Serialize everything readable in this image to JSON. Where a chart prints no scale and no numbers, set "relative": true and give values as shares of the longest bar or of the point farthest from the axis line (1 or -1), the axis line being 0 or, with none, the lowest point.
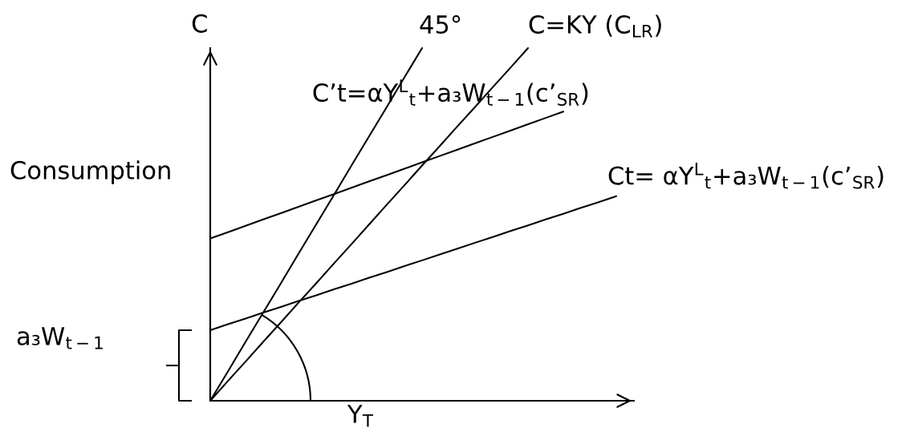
{
  "chart_data": {
    "type": "line",
    "relative": true,
    "line_style": "solid",
    "xlabel": "Y$_{T}$",
    "ylabel": "C",
    "annotations": [
      "Consumption",
      "a₃W$_{t−1}$"
    ],
    "categories": [
      null,
      null,
      null,
      null,
      null,
      null,
      null,
      null,
      null,
      null,
      null,
      null,
      null,
      null,
      null,
      null,
      null,
      null,
      null,
      null,
      null,
      null,
      null,
      null,
      null
    ],
    "series": [
      {
        "name": "45°",
        "color": "#000000",
        "values": [
          0,
          0.083,
          0.167,
          0.25,
          0.333,
          0.417,
          0.5,
          0.583,
          0.667,
          0.75,
          0.833,
          0.917,
          1.0,
          null,
          null,
          null,
          null,
          null,
          null,
          null,
          null,
          null,
          null,
          null,
          null
        ]
      },
      {
        "name": "C=KY (C$_{LR}$)",
        "color": "#000000",
        "values": [
          0,
          0.056,
          0.111,
          0.167,
          0.222,
          0.278,
          0.333,
          0.389,
          0.444,
          0.5,
          0.556,
          0.611,
          0.667,
          0.722,
          0.778,
          0.833,
          0.889,
          0.944,
          1.0,
          null,
          null,
          null,
          null,
          null,
          null
        ]
      },
      {
        "name": "C’t=αY$^{L}$$_{t}$+a₃W$_{t−1}$(c’$_{SR}$)",
        "color": "#000000",
        "values": [
          0.46,
          0.478,
          0.496,
          0.514,
          0.532,
          0.55,
          0.568,
          0.586,
          0.604,
          0.622,
          0.64,
          0.658,
          0.676,
          0.694,
          0.712,
          0.73,
          0.748,
          0.766,
          0.784,
          0.802,
          0.82,
          null,
          null,
          null,
          null
        ]
      },
      {
        "name": "Ct= αY$^{L}$$_{t}$+a₃W$_{t−1}$(c’$_{SR}$)",
        "color": "#000000",
        "values": [
          0.2,
          0.217,
          0.233,
          0.25,
          0.266,
          0.283,
          0.299,
          0.316,
          0.332,
          0.349,
          0.365,
          0.382,
          0.398,
          0.415,
          0.431,
          0.448,
          0.464,
          0.481,
          0.497,
          0.514,
          0.53,
          0.547,
          0.563,
          0.58,
          null
        ]
      }
    ]
  }
}
